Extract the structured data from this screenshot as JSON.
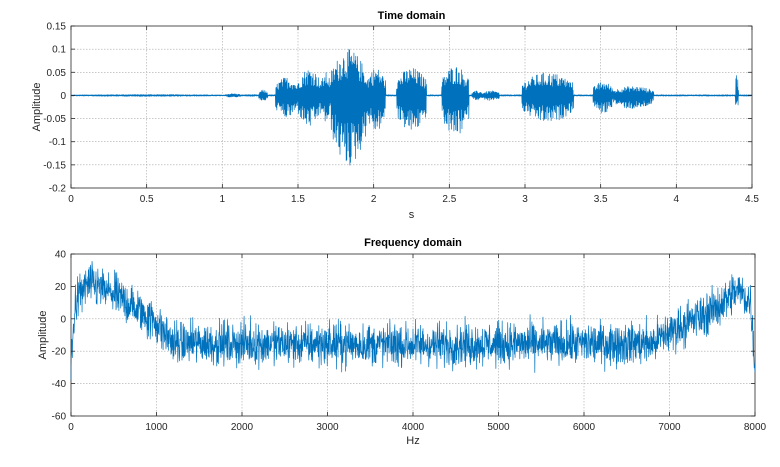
{
  "chart_data": [
    {
      "type": "line",
      "title": "Time domain",
      "xlabel": "s",
      "ylabel": "Amplitude",
      "xlim": [
        0,
        4.5
      ],
      "ylim": [
        -0.2,
        0.15
      ],
      "xticks": [
        0,
        0.5,
        1,
        1.5,
        2,
        2.5,
        3,
        3.5,
        4,
        4.5
      ],
      "yticks": [
        -0.2,
        -0.15,
        -0.1,
        -0.05,
        0,
        0.05,
        0.1,
        0.15
      ],
      "xtick_labels": [
        "0",
        "0.5",
        "1",
        "1.5",
        "2",
        "2.5",
        "3",
        "3.5",
        "4",
        "4.5"
      ],
      "ytick_labels": [
        "-0.2",
        "-0.15",
        "-0.1",
        "-0.05",
        "0",
        "0.05",
        "0.1",
        "0.15"
      ],
      "grid": true,
      "color": "#0072BD",
      "series": [
        {
          "envelope": [
            {
              "t0": 0.0,
              "t1": 1.02,
              "pos": 0.002,
              "neg": 0.002
            },
            {
              "t0": 1.02,
              "t1": 1.12,
              "pos": 0.004,
              "neg": 0.004
            },
            {
              "t0": 1.12,
              "t1": 1.24,
              "pos": 0.002,
              "neg": 0.002
            },
            {
              "t0": 1.24,
              "t1": 1.3,
              "pos": 0.012,
              "neg": 0.012
            },
            {
              "t0": 1.35,
              "t1": 1.5,
              "pos": 0.04,
              "neg": 0.05
            },
            {
              "t0": 1.5,
              "t1": 1.65,
              "pos": 0.06,
              "neg": 0.07
            },
            {
              "t0": 1.65,
              "t1": 1.72,
              "pos": 0.05,
              "neg": 0.06
            },
            {
              "t0": 1.72,
              "t1": 1.95,
              "pos": 0.1,
              "neg": 0.155
            },
            {
              "t0": 1.95,
              "t1": 2.08,
              "pos": 0.06,
              "neg": 0.08
            },
            {
              "t0": 2.15,
              "t1": 2.35,
              "pos": 0.06,
              "neg": 0.08
            },
            {
              "t0": 2.45,
              "t1": 2.63,
              "pos": 0.065,
              "neg": 0.09
            },
            {
              "t0": 2.65,
              "t1": 2.72,
              "pos": 0.01,
              "neg": 0.01
            },
            {
              "t0": 2.72,
              "t1": 2.83,
              "pos": 0.01,
              "neg": 0.012
            },
            {
              "t0": 2.98,
              "t1": 3.32,
              "pos": 0.05,
              "neg": 0.06
            },
            {
              "t0": 3.45,
              "t1": 3.58,
              "pos": 0.03,
              "neg": 0.04
            },
            {
              "t0": 3.58,
              "t1": 3.85,
              "pos": 0.02,
              "neg": 0.03
            },
            {
              "t0": 4.39,
              "t1": 4.41,
              "pos": 0.05,
              "neg": 0.03
            }
          ]
        }
      ]
    },
    {
      "type": "line",
      "title": "Frequency domain",
      "xlabel": "Hz",
      "ylabel": "Amplitude",
      "xlim": [
        0,
        8000
      ],
      "ylim": [
        -60,
        40
      ],
      "xticks": [
        0,
        1000,
        2000,
        3000,
        4000,
        5000,
        6000,
        7000,
        8000
      ],
      "yticks": [
        -60,
        -40,
        -20,
        0,
        20,
        40
      ],
      "xtick_labels": [
        "0",
        "1000",
        "2000",
        "3000",
        "4000",
        "5000",
        "6000",
        "7000",
        "8000"
      ],
      "ytick_labels": [
        "-60",
        "-40",
        "-20",
        "0",
        "20",
        "40"
      ],
      "grid": true,
      "color": "#0072BD",
      "series": [
        {
          "trend": [
            {
              "x": 0,
              "y": -30
            },
            {
              "x": 50,
              "y": 10
            },
            {
              "x": 200,
              "y": 22
            },
            {
              "x": 500,
              "y": 15
            },
            {
              "x": 800,
              "y": 5
            },
            {
              "x": 1000,
              "y": -3
            },
            {
              "x": 1200,
              "y": -15
            },
            {
              "x": 4000,
              "y": -16
            },
            {
              "x": 6800,
              "y": -15
            },
            {
              "x": 7000,
              "y": -8
            },
            {
              "x": 7500,
              "y": 5
            },
            {
              "x": 7800,
              "y": 18
            },
            {
              "x": 7950,
              "y": 10
            },
            {
              "x": 8000,
              "y": -30
            }
          ],
          "noise_amplitude": 12
        }
      ]
    }
  ]
}
